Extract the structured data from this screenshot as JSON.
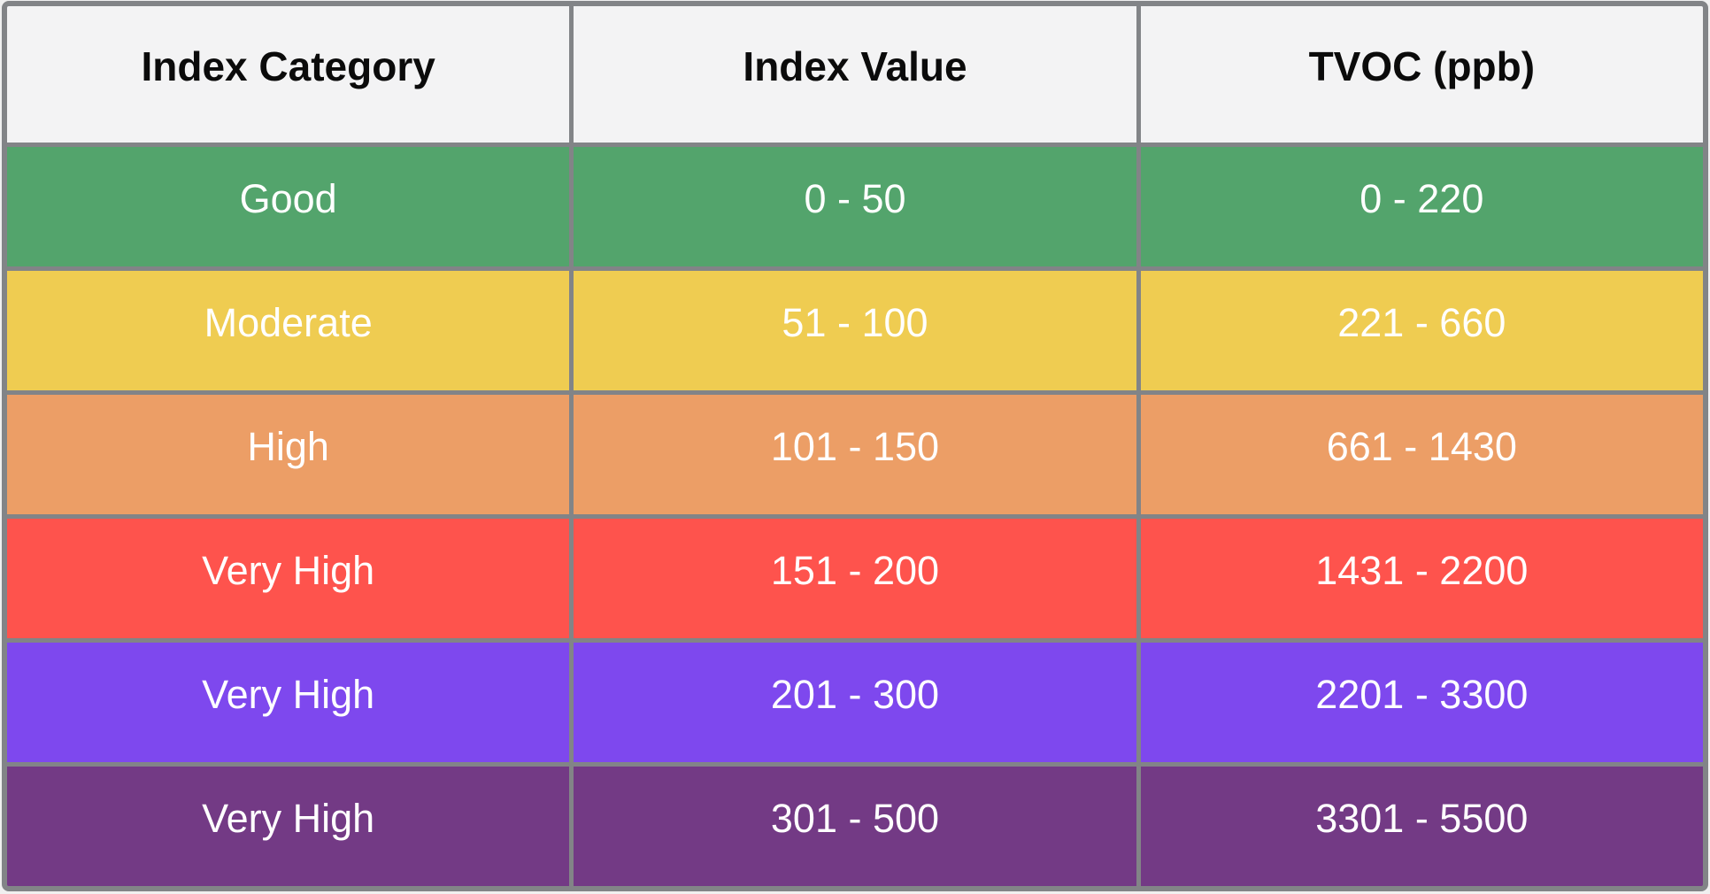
{
  "table": {
    "headers": [
      "Index Category",
      "Index Value",
      "TVOC (ppb)"
    ],
    "rows": [
      {
        "category": "Good",
        "index_value": "0 - 50",
        "tvoc": "0 - 220",
        "color": "#53a46c",
        "text_color": "#ffffff"
      },
      {
        "category": "Moderate",
        "index_value": "51 - 100",
        "tvoc": "221 - 660",
        "color": "#efcc51",
        "text_color": "#ffffff"
      },
      {
        "category": "High",
        "index_value": "101 - 150",
        "tvoc": "661 - 1430",
        "color": "#ec9e66",
        "text_color": "#ffffff"
      },
      {
        "category": "Very High",
        "index_value": "151 - 200",
        "tvoc": "1431 - 2200",
        "color": "#fe534d",
        "text_color": "#ffffff"
      },
      {
        "category": "Very High",
        "index_value": "201 - 300",
        "tvoc": "2201 - 3300",
        "color": "#7e48ee",
        "text_color": "#ffffff"
      },
      {
        "category": "Very High",
        "index_value": "301 - 500",
        "tvoc": "3301 - 5500",
        "color": "#733a85",
        "text_color": "#ffffff"
      }
    ],
    "style": {
      "border_color": "#828487",
      "header_bg": "#f3f3f4",
      "header_text_color": "#0b0b0b",
      "body_text_color": "#ffffff"
    }
  },
  "chart_data": {
    "type": "table",
    "columns": [
      "Index Category",
      "Index Value",
      "TVOC (ppb)"
    ],
    "rows": [
      [
        "Good",
        "0 - 50",
        "0 - 220"
      ],
      [
        "Moderate",
        "51 - 100",
        "221 - 660"
      ],
      [
        "High",
        "101 - 150",
        "661 - 1430"
      ],
      [
        "Very High",
        "151 - 200",
        "1431 - 2200"
      ],
      [
        "Very High",
        "201 - 300",
        "2201 - 3300"
      ],
      [
        "Very High",
        "301 - 500",
        "3301 - 5500"
      ]
    ],
    "row_colors": [
      "#53a46c",
      "#efcc51",
      "#ec9e66",
      "#fe534d",
      "#7e48ee",
      "#733a85"
    ],
    "index_value_ranges": [
      [
        0,
        50
      ],
      [
        51,
        100
      ],
      [
        101,
        150
      ],
      [
        151,
        200
      ],
      [
        201,
        300
      ],
      [
        301,
        500
      ]
    ],
    "tvoc_ppb_ranges": [
      [
        0,
        220
      ],
      [
        221,
        660
      ],
      [
        661,
        1430
      ],
      [
        1431,
        2200
      ],
      [
        2201,
        3300
      ],
      [
        3301,
        5500
      ]
    ],
    "legend_position": "none",
    "grid": true
  }
}
